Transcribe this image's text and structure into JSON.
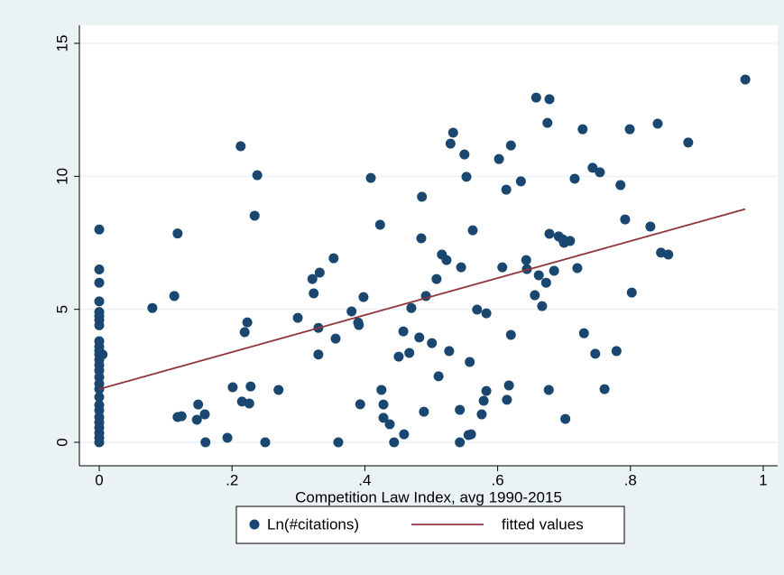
{
  "chart_data": {
    "type": "scatter",
    "x_label": "Competition Law Index, avg 1990-2015",
    "xlim": [
      0,
      1
    ],
    "ylim": [
      0,
      15
    ],
    "xticks": [
      0,
      {
        "value": 0.2,
        "label": ".2"
      },
      {
        "value": 0.4,
        "label": ".4"
      },
      {
        "value": 0.6,
        "label": ".6"
      },
      {
        "value": 0.8,
        "label": ".8"
      },
      1
    ],
    "yticks": [
      0,
      5,
      10,
      15
    ],
    "grid": true,
    "legend": "bottom",
    "series": [
      {
        "name": "Ln(#citations)",
        "kind": "scatter",
        "color": "#1a476f",
        "x": [
          0,
          0,
          0,
          0,
          0,
          0,
          0,
          0,
          0,
          0,
          0,
          0,
          0,
          0,
          0,
          0,
          0,
          0,
          0,
          0,
          0,
          0,
          0,
          0,
          0,
          0,
          0,
          0.005,
          0.08,
          0.113,
          0.118,
          0.118,
          0.124,
          0.147,
          0.149,
          0.159,
          0.16,
          0.193,
          0.201,
          0.213,
          0.215,
          0.219,
          0.223,
          0.226,
          0.228,
          0.234,
          0.238,
          0.25,
          0.27,
          0.299,
          0.321,
          0.323,
          0.332,
          0.33,
          0.33,
          0.353,
          0.356,
          0.36,
          0.38,
          0.39,
          0.391,
          0.393,
          0.398,
          0.409,
          0.423,
          0.425,
          0.428,
          0.428,
          0.4375,
          0.444,
          0.451,
          0.458,
          0.459,
          0.467,
          0.47,
          0.482,
          0.485,
          0.486,
          0.489,
          0.492,
          0.501,
          0.508,
          0.511,
          0.516,
          0.523,
          0.527,
          0.529,
          0.533,
          0.545,
          0.543,
          0.543,
          0.55,
          0.553,
          0.556,
          0.558,
          0.56,
          0.5625,
          0.569,
          0.576,
          0.579,
          0.583,
          0.583,
          0.602,
          0.607,
          0.613,
          0.614,
          0.617,
          0.62,
          0.62,
          0.635,
          0.643,
          0.644,
          0.658,
          0.656,
          0.662,
          0.667,
          0.673,
          0.675,
          0.678,
          0.678,
          0.677,
          0.685,
          0.692,
          0.698,
          0.7,
          0.702,
          0.709,
          0.716,
          0.72,
          0.728,
          0.73,
          0.743,
          0.747,
          0.754,
          0.761,
          0.779,
          0.785,
          0.792,
          0.799,
          0.802,
          0.83,
          0.841,
          0.846,
          0.857,
          0.887,
          0.973
        ],
        "values": [
          8.0,
          6.5,
          6.0,
          5.3,
          4.9,
          4.75,
          4.6,
          4.4,
          3.8,
          3.6,
          3.45,
          3.3,
          3.1,
          2.9,
          2.7,
          2.45,
          2.2,
          2.0,
          1.7,
          1.4,
          1.2,
          0.95,
          0.75,
          0.55,
          0.35,
          0.17,
          0,
          3.3,
          5.05,
          5.5,
          7.85,
          0.95,
          0.98,
          0.85,
          1.42,
          1.05,
          0,
          0.17,
          2.07,
          11.13,
          1.53,
          4.14,
          4.51,
          1.46,
          2.1,
          8.52,
          10.04,
          0,
          1.97,
          4.68,
          6.14,
          5.6,
          6.38,
          4.3,
          3.3,
          6.92,
          3.9,
          0,
          4.92,
          4.5,
          4.41,
          1.43,
          5.46,
          9.94,
          8.18,
          1.97,
          1.42,
          0.92,
          0.68,
          0,
          3.22,
          4.17,
          0.3,
          3.36,
          5.05,
          3.94,
          7.67,
          9.23,
          1.15,
          5.5,
          3.73,
          6.14,
          2.48,
          7.06,
          6.85,
          3.43,
          11.23,
          11.64,
          6.58,
          1.22,
          0,
          10.82,
          9.98,
          0.27,
          3.02,
          0.3,
          7.97,
          4.99,
          1.05,
          1.56,
          4.85,
          1.93,
          10.65,
          6.58,
          9.5,
          1.6,
          2.14,
          11.16,
          4.04,
          9.81,
          6.85,
          6.51,
          12.96,
          5.53,
          6.28,
          5.12,
          6.0,
          12.01,
          12.9,
          7.84,
          1.97,
          6.45,
          7.74,
          7.63,
          7.5,
          0.88,
          7.57,
          9.91,
          6.55,
          11.77,
          4.1,
          10.32,
          3.33,
          10.15,
          2.0,
          3.43,
          9.67,
          8.38,
          11.77,
          5.63,
          8.11,
          11.98,
          7.13,
          7.06,
          11.27,
          13.64
        ]
      },
      {
        "name": "fitted values",
        "kind": "line",
        "color": "#90353b",
        "x": [
          0,
          0.973
        ],
        "values": [
          2.0,
          8.77
        ]
      }
    ]
  }
}
